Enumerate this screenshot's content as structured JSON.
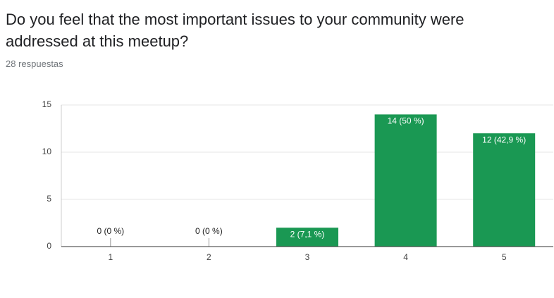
{
  "chart_data": {
    "type": "bar",
    "title": "Do you feel that the most important issues to your community were addressed at this meetup?",
    "subtitle": "28 respuestas",
    "categories": [
      "1",
      "2",
      "3",
      "4",
      "5"
    ],
    "values": [
      0,
      0,
      2,
      14,
      12
    ],
    "value_labels": [
      "0 (0 %)",
      "0 (0 %)",
      "2 (7,1 %)",
      "14 (50 %)",
      "12 (42,9 %)"
    ],
    "color": "#1a9853",
    "ylim": [
      0,
      15
    ],
    "yticks": [
      0,
      5,
      10,
      15
    ],
    "grid": true
  }
}
